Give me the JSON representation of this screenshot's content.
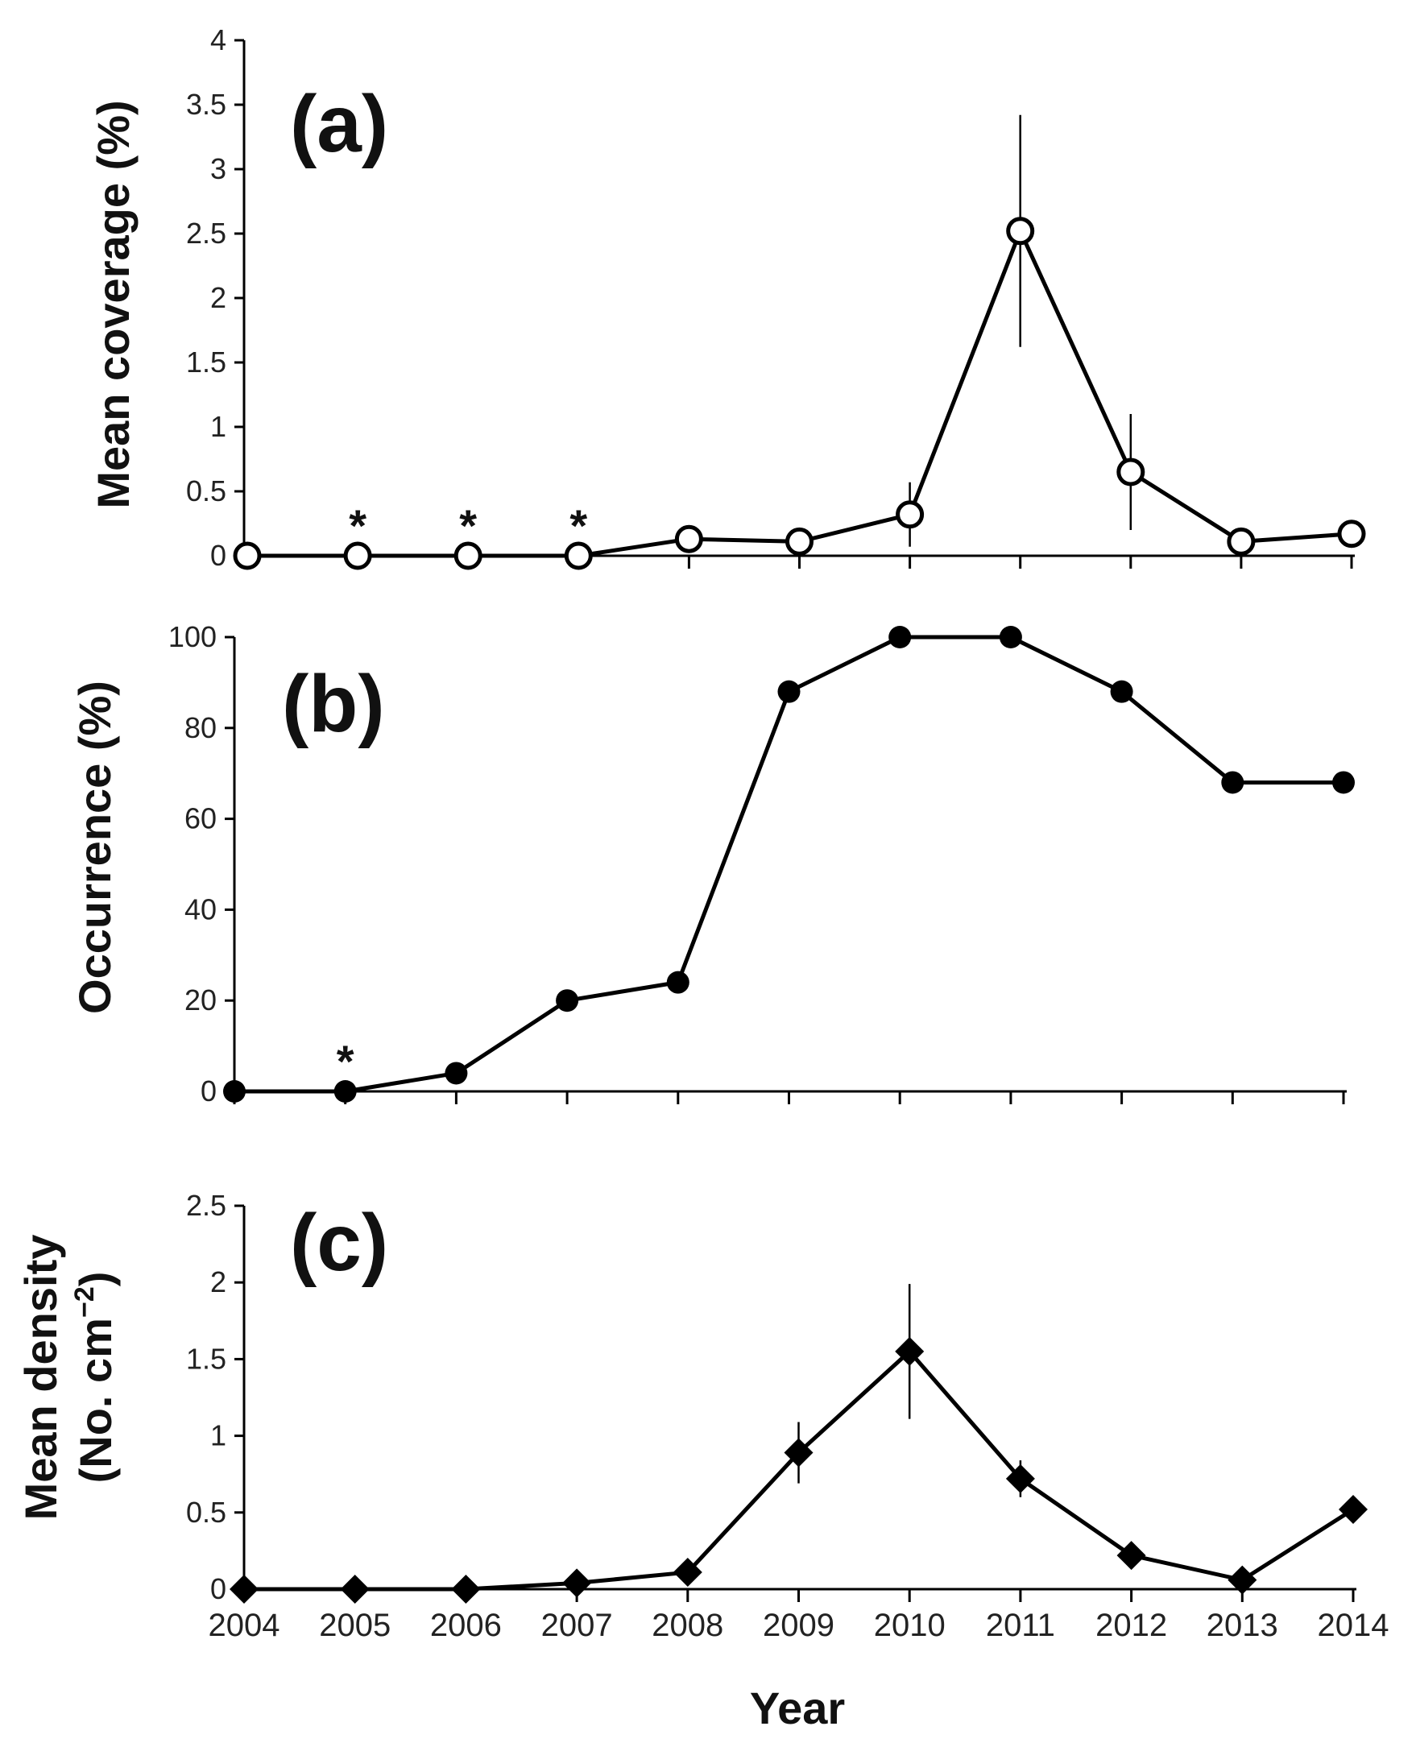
{
  "chart_data": [
    {
      "type": "line",
      "panel_label": "(a)",
      "ylabel": "Mean coverage (%)",
      "xlabel": "",
      "ylim": [
        0,
        4
      ],
      "yticks": [
        "0",
        "0.5",
        "1",
        "1.5",
        "2",
        "2.5",
        "3",
        "3.5",
        "4"
      ],
      "x": [
        2004,
        2005,
        2006,
        2007,
        2008,
        2009,
        2010,
        2011,
        2012,
        2013,
        2014
      ],
      "values": [
        0,
        0,
        0,
        0,
        0.13,
        0.11,
        0.32,
        2.52,
        0.65,
        0.11,
        0.17
      ],
      "errors": [
        0,
        0,
        0,
        0,
        0,
        0,
        0.25,
        0.9,
        0.45,
        0,
        0
      ],
      "marker": "open-circle",
      "starred_years": [
        2005,
        2006,
        2007
      ],
      "star_text": "*"
    },
    {
      "type": "line",
      "panel_label": "(b)",
      "ylabel": "Occurrence (%)",
      "xlabel": "",
      "ylim": [
        0,
        100
      ],
      "yticks": [
        "0",
        "20",
        "40",
        "60",
        "80",
        "100"
      ],
      "x": [
        2004,
        2005,
        2006,
        2007,
        2008,
        2009,
        2010,
        2011,
        2012,
        2013,
        2014
      ],
      "values": [
        0,
        0,
        4,
        20,
        24,
        88,
        100,
        100,
        88,
        68,
        68
      ],
      "errors": [
        0,
        0,
        0,
        0,
        0,
        0,
        0,
        0,
        0,
        0,
        0
      ],
      "marker": "filled-circle",
      "starred_years": [
        2005
      ],
      "star_text": "*"
    },
    {
      "type": "line",
      "panel_label": "(c)",
      "ylabel_line1": "Mean density",
      "ylabel_line2": "(No. cm",
      "ylabel_sup": "−2",
      "ylabel_close": ")",
      "xlabel": "Year",
      "ylim": [
        0,
        2.5
      ],
      "yticks": [
        "0",
        "0.5",
        "1",
        "1.5",
        "2",
        "2.5"
      ],
      "x": [
        2004,
        2005,
        2006,
        2007,
        2008,
        2009,
        2010,
        2011,
        2012,
        2013,
        2014
      ],
      "xticks": [
        "2004",
        "2005",
        "2006",
        "2007",
        "2008",
        "2009",
        "2010",
        "2011",
        "2012",
        "2013",
        "2014"
      ],
      "values": [
        0,
        0,
        0,
        0.04,
        0.11,
        0.89,
        1.55,
        0.72,
        0.22,
        0.06,
        0.52
      ],
      "errors": [
        0,
        0,
        0,
        0,
        0,
        0.2,
        0.44,
        0.12,
        0,
        0,
        0
      ],
      "marker": "filled-diamond",
      "starred_years": [],
      "star_text": "*"
    }
  ]
}
